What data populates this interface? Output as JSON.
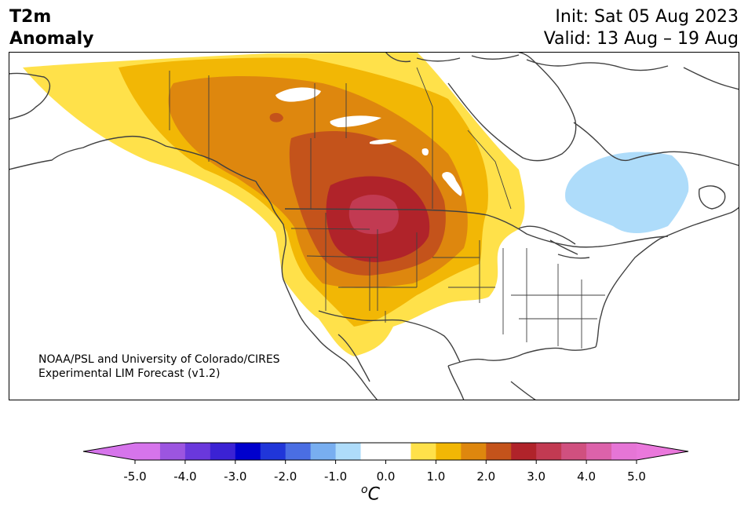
{
  "title": {
    "left_line1": "T2m",
    "left_line2": "Anomaly",
    "init": "Init: Sat 05 Aug 2023",
    "valid": "Valid: 13 Aug – 19 Aug"
  },
  "credit": {
    "line1": "NOAA/PSL and University of Colorado/CIRES",
    "line2": "Experimental LIM Forecast (v1.2)"
  },
  "colorbar": {
    "unit_base": "C",
    "unit_sup": "o",
    "tick_labels": [
      "-5.0",
      "-4.0",
      "-3.0",
      "-2.0",
      "-1.0",
      "0.0",
      "1.0",
      "2.0",
      "3.0",
      "4.0",
      "5.0"
    ],
    "levels": [
      -5.0,
      -4.5,
      -4.0,
      -3.5,
      -3.0,
      -2.5,
      -2.0,
      -1.5,
      -1.0,
      -0.5,
      0.5,
      1.0,
      1.5,
      2.0,
      2.5,
      3.0,
      3.5,
      4.0,
      4.5,
      5.0
    ],
    "colors": [
      "#d674eb",
      "#9c55e0",
      "#6a38dc",
      "#3b22d4",
      "#0000cd",
      "#2036d9",
      "#4a6ee3",
      "#78aef0",
      "#aedcfa",
      "#ffffff",
      "#ffe14a",
      "#f2b705",
      "#de870e",
      "#c4531b",
      "#b0232a",
      "#c23a52",
      "#d0507f",
      "#dc62aa",
      "#e675d6"
    ],
    "under_color": "#d674eb",
    "over_color": "#ea78dc"
  },
  "map": {
    "projection": "Lambert conformal, North America",
    "colors": {
      "ocean": "#ffffff",
      "coast": "#404040",
      "anom_0_5": "#ffe14a",
      "anom_1_0": "#f2b705",
      "anom_1_5": "#de870e",
      "anom_2_0": "#c4531b",
      "anom_2_5": "#b0232a",
      "anom_3_0": "#c23a52",
      "anom_neg_1": "#aedcfa"
    }
  }
}
